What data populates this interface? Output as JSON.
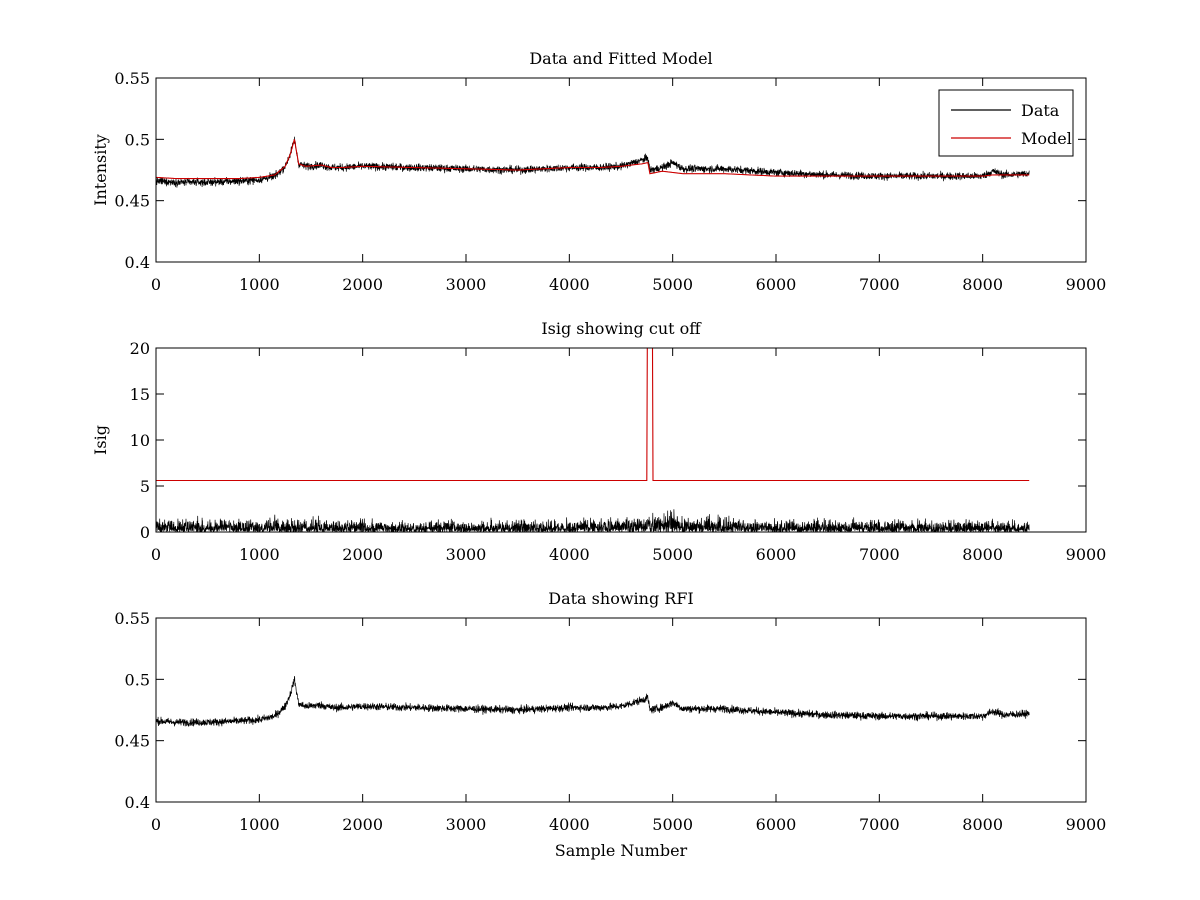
{
  "colors": {
    "data": "#000000",
    "model": "#cc0000",
    "axes": "#000000",
    "background": "#ffffff"
  },
  "chart_data": [
    {
      "type": "line",
      "title": "Data and Fitted Model",
      "xlabel": "",
      "ylabel": "Intensity",
      "xlim": [
        0,
        9000
      ],
      "ylim": [
        0.4,
        0.55
      ],
      "xticks": [
        "0",
        "1000",
        "2000",
        "3000",
        "4000",
        "5000",
        "6000",
        "7000",
        "8000",
        "9000"
      ],
      "yticks": [
        "0.4",
        "0.45",
        "0.5",
        "0.55"
      ],
      "legend": {
        "position": "top-right",
        "entries": [
          "Data",
          "Model"
        ]
      },
      "series": [
        {
          "name": "Data",
          "style": "noisy",
          "noise_amplitude": 0.0055,
          "x": [
            0,
            200,
            500,
            800,
            1000,
            1150,
            1250,
            1300,
            1340,
            1380,
            1450,
            1600,
            1700,
            1800,
            2000,
            2500,
            3000,
            3500,
            4000,
            4300,
            4500,
            4700,
            4760,
            4780,
            4900,
            5000,
            5100,
            5500,
            6000,
            6500,
            7000,
            7500,
            8000,
            8100,
            8200,
            8450
          ],
          "y": [
            0.466,
            0.465,
            0.465,
            0.466,
            0.467,
            0.47,
            0.478,
            0.488,
            0.5,
            0.48,
            0.478,
            0.479,
            0.477,
            0.477,
            0.478,
            0.477,
            0.476,
            0.475,
            0.477,
            0.477,
            0.478,
            0.483,
            0.485,
            0.475,
            0.477,
            0.481,
            0.476,
            0.476,
            0.473,
            0.471,
            0.47,
            0.47,
            0.47,
            0.474,
            0.471,
            0.472
          ]
        },
        {
          "name": "Model",
          "style": "smooth",
          "x": [
            0,
            200,
            500,
            800,
            1000,
            1150,
            1250,
            1300,
            1340,
            1380,
            1450,
            1600,
            1700,
            1800,
            2000,
            2500,
            3000,
            3500,
            4000,
            4300,
            4500,
            4700,
            4760,
            4780,
            4900,
            5000,
            5100,
            5500,
            6000,
            6500,
            7000,
            7500,
            8000,
            8100,
            8200,
            8450
          ],
          "y": [
            0.469,
            0.468,
            0.468,
            0.468,
            0.469,
            0.471,
            0.478,
            0.488,
            0.5,
            0.48,
            0.478,
            0.479,
            0.477,
            0.477,
            0.478,
            0.477,
            0.476,
            0.475,
            0.477,
            0.477,
            0.478,
            0.48,
            0.481,
            0.472,
            0.474,
            0.473,
            0.472,
            0.472,
            0.47,
            0.47,
            0.47,
            0.47,
            0.47,
            0.471,
            0.471,
            0.471
          ]
        }
      ]
    },
    {
      "type": "line",
      "title": "Isig showing cut off",
      "xlabel": "",
      "ylabel": "Isig",
      "xlim": [
        0,
        9000
      ],
      "ylim": [
        0,
        20
      ],
      "xticks": [
        "0",
        "1000",
        "2000",
        "3000",
        "4000",
        "5000",
        "6000",
        "7000",
        "8000",
        "9000"
      ],
      "yticks": [
        "0",
        "5",
        "10",
        "15",
        "20"
      ],
      "series": [
        {
          "name": "Isig",
          "style": "noisy-positive",
          "noise_amplitude": 1.1,
          "x": [
            0,
            500,
            1000,
            2000,
            3000,
            4000,
            4500,
            4800,
            5000,
            5100,
            5500,
            6000,
            7000,
            8000,
            8450
          ],
          "y": [
            0.6,
            0.6,
            0.55,
            0.4,
            0.4,
            0.45,
            0.6,
            0.8,
            1.4,
            0.9,
            0.6,
            0.5,
            0.45,
            0.45,
            0.45
          ]
        },
        {
          "name": "Cut off",
          "style": "steps",
          "x": [
            0,
            4750,
            4755,
            4805,
            4810,
            8450
          ],
          "y": [
            5.6,
            5.6,
            20,
            20,
            5.6,
            5.6
          ]
        }
      ]
    },
    {
      "type": "line",
      "title": "Data showing RFI",
      "xlabel": "Sample Number",
      "ylabel": "",
      "xlim": [
        0,
        9000
      ],
      "ylim": [
        0.4,
        0.55
      ],
      "xticks": [
        "0",
        "1000",
        "2000",
        "3000",
        "4000",
        "5000",
        "6000",
        "7000",
        "8000",
        "9000"
      ],
      "yticks": [
        "0.4",
        "0.45",
        "0.5",
        "0.55"
      ],
      "series": [
        {
          "name": "Data",
          "style": "noisy",
          "noise_amplitude": 0.0055,
          "x": [
            0,
            200,
            500,
            800,
            1000,
            1150,
            1250,
            1300,
            1340,
            1380,
            1450,
            1600,
            1700,
            1800,
            2000,
            2500,
            3000,
            3500,
            4000,
            4300,
            4500,
            4700,
            4760,
            4780,
            4900,
            5000,
            5100,
            5500,
            6000,
            6500,
            7000,
            7500,
            8000,
            8100,
            8200,
            8450
          ],
          "y": [
            0.466,
            0.465,
            0.465,
            0.466,
            0.467,
            0.47,
            0.478,
            0.488,
            0.5,
            0.48,
            0.478,
            0.479,
            0.477,
            0.477,
            0.478,
            0.477,
            0.476,
            0.475,
            0.477,
            0.477,
            0.478,
            0.483,
            0.485,
            0.475,
            0.477,
            0.481,
            0.476,
            0.476,
            0.473,
            0.471,
            0.47,
            0.47,
            0.47,
            0.474,
            0.471,
            0.472
          ]
        }
      ]
    }
  ]
}
